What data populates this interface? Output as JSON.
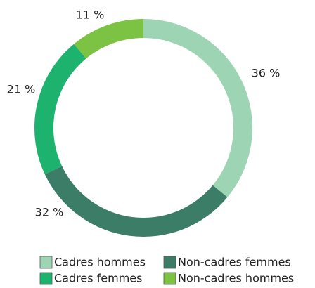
{
  "chart_data": {
    "type": "donut",
    "categories": [
      "Cadres hommes",
      "Non-cadres femmes",
      "Cadres femmes",
      "Non-cadres hommes"
    ],
    "values": [
      36,
      32,
      21,
      11
    ],
    "value_labels": [
      "36 %",
      "32 %",
      "21 %",
      "11 %"
    ],
    "colors": [
      "#9dd4b4",
      "#3b7d66",
      "#1db36f",
      "#7cc243"
    ]
  }
}
